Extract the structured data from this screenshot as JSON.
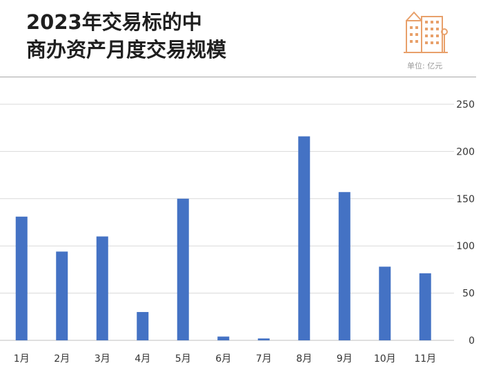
{
  "header": {
    "title_line1": "2023年交易标的中",
    "title_line2": "商办资产月度交易规模",
    "unit": "单位: 亿元"
  },
  "colors": {
    "bar": "#4472c4",
    "logo": "#e8a06a",
    "grid": "#d9d9d9"
  },
  "chart_data": {
    "type": "bar",
    "title": "2023年交易标的中商办资产月度交易规模",
    "ylabel": "单位: 亿元",
    "categories": [
      "1月",
      "2月",
      "3月",
      "4月",
      "5月",
      "6月",
      "7月",
      "8月",
      "9月",
      "10月",
      "11月"
    ],
    "values": [
      131,
      94,
      110,
      30,
      150,
      4,
      2,
      216,
      157,
      78,
      71
    ],
    "ylim": [
      0,
      250
    ],
    "yticks": [
      0,
      50,
      100,
      150,
      200,
      250
    ],
    "y_axis_position": "right",
    "grid": true,
    "legend": "none"
  }
}
